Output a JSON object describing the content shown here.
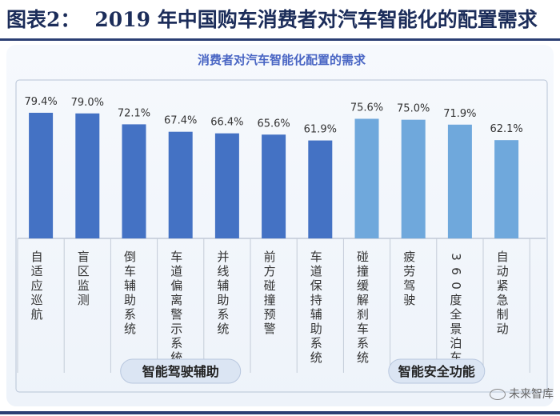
{
  "figure": {
    "label": "图表2：",
    "title": "2019 年中国购车消费者对汽车智能化的配置需求"
  },
  "watermark": "未来智库",
  "colors": {
    "group1": "#4472c4",
    "group2": "#6fa8dc",
    "title_text": "#1c2d5a",
    "chart_title": "#4a66c4"
  },
  "chart_data": {
    "type": "bar",
    "title": "消费者对汽车智能化配置的需求",
    "categories": [
      "自适应巡航",
      "盲区监测",
      "倒车辅助系统",
      "车道偏离警示系统",
      "并线辅助系统",
      "前方碰撞预警",
      "车道保持辅助系统",
      "碰撞缓解刹车系统",
      "疲劳驾驶",
      "360 度全景泊车",
      "自动紧急制动"
    ],
    "values": [
      79.4,
      79.0,
      72.1,
      67.4,
      66.4,
      65.6,
      61.9,
      75.6,
      75.0,
      71.9,
      62.1
    ],
    "data_labels": [
      "79.4%",
      "79.0%",
      "72.1%",
      "67.4%",
      "66.4%",
      "65.6%",
      "61.9%",
      "75.6%",
      "75.0%",
      "71.9%",
      "62.1%"
    ],
    "groups": [
      {
        "name": "智能驾驶辅助",
        "categories": [
          0,
          1,
          2,
          3,
          4,
          5,
          6
        ]
      },
      {
        "name": "智能安全功能",
        "categories": [
          7,
          8,
          9,
          10
        ]
      }
    ],
    "ylim": [
      0,
      90
    ],
    "grid": false,
    "legend": "none"
  }
}
